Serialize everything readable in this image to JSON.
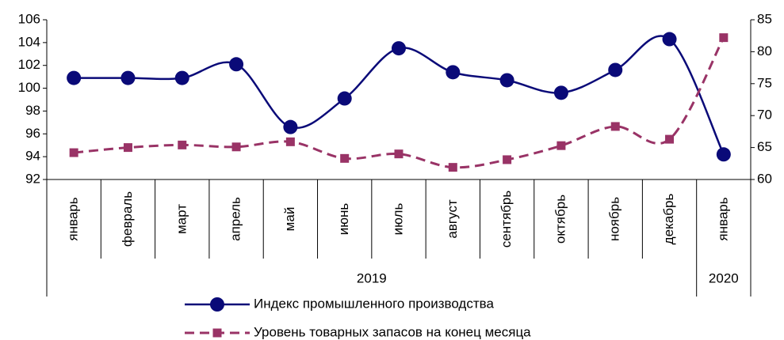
{
  "chart_data": {
    "type": "line",
    "category_groups": [
      {
        "name": "2019",
        "categories": [
          "январь",
          "февраль",
          "март",
          "апрель",
          "май",
          "июнь",
          "июль",
          "август",
          "сентябрь",
          "октябрь",
          "ноябрь",
          "декабрь"
        ]
      },
      {
        "name": "2020",
        "categories": [
          "январь"
        ]
      }
    ],
    "series": [
      {
        "name": "Индекс промышленного производства",
        "color": "#0a0a78",
        "axis": "y",
        "marker": "circle",
        "dash": false,
        "values": [
          100.9,
          100.9,
          100.9,
          102.1,
          96.6,
          99.1,
          103.5,
          101.4,
          100.7,
          99.6,
          101.6,
          104.3,
          94.2
        ]
      },
      {
        "name": "Уровень товарных запасов на конец месяца",
        "color": "#993366",
        "axis": "y2",
        "marker": "square",
        "dash": true,
        "values": [
          64.2,
          65.0,
          65.4,
          65.1,
          65.9,
          63.3,
          64.0,
          61.9,
          63.1,
          65.3,
          68.3,
          66.3,
          82.2
        ]
      }
    ],
    "ylim": [
      92,
      106
    ],
    "yticks": [
      92,
      94,
      96,
      98,
      100,
      102,
      104,
      106
    ],
    "y2lim": [
      60,
      85
    ],
    "y2ticks": [
      60,
      65,
      70,
      75,
      80,
      85
    ],
    "smooth": true,
    "grid": false,
    "legend": "bottom"
  }
}
